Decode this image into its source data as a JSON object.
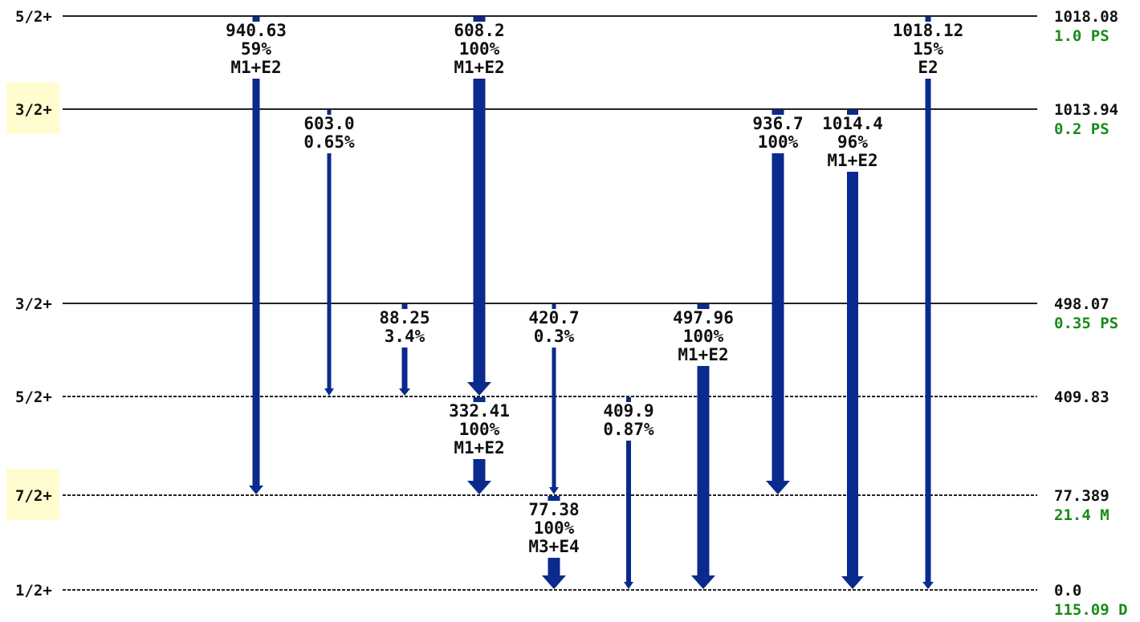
{
  "colors": {
    "arrow": "#0a2a8e",
    "lifetime": "#1b8a1b",
    "line": "#222222",
    "highlight": "#fffccf"
  },
  "levels": [
    {
      "spin": "5/2+",
      "energy": "1018.08",
      "lifetime": "1.0 PS",
      "dashed": false,
      "highlight": false
    },
    {
      "spin": "3/2+",
      "energy": "1013.94",
      "lifetime": "0.2 PS",
      "dashed": false,
      "highlight": true
    },
    {
      "spin": "3/2+",
      "energy": "498.07",
      "lifetime": "0.35 PS",
      "dashed": false,
      "highlight": false
    },
    {
      "spin": "5/2+",
      "energy": "409.83",
      "lifetime": "",
      "dashed": true,
      "highlight": false
    },
    {
      "spin": "7/2+",
      "energy": "77.389",
      "lifetime": "21.4 M",
      "dashed": true,
      "highlight": true
    },
    {
      "spin": "1/2+",
      "energy": "0.0",
      "lifetime": "115.09 D",
      "dashed": true,
      "highlight": false
    }
  ],
  "transitions": [
    {
      "from": 0,
      "to": 4,
      "energy": "940.63",
      "intensity": "59%",
      "mult": "M1+E2",
      "thick": 9
    },
    {
      "from": 0,
      "to": 3,
      "energy": "608.2",
      "intensity": "100%",
      "mult": "M1+E2",
      "thick": 15
    },
    {
      "from": 0,
      "to": 5,
      "energy": "1018.12",
      "intensity": "15%",
      "mult": "E2",
      "thick": 7
    },
    {
      "from": 1,
      "to": 3,
      "energy": "603.0",
      "intensity": "0.65%",
      "mult": "",
      "thick": 5
    },
    {
      "from": 1,
      "to": 4,
      "energy": "936.7",
      "intensity": "100%",
      "mult": "",
      "thick": 15
    },
    {
      "from": 1,
      "to": 5,
      "energy": "1014.4",
      "intensity": "96%",
      "mult": "M1+E2",
      "thick": 14
    },
    {
      "from": 2,
      "to": 3,
      "energy": "88.25",
      "intensity": "3.4%",
      "mult": "",
      "thick": 7
    },
    {
      "from": 2,
      "to": 4,
      "energy": "420.7",
      "intensity": "0.3%",
      "mult": "",
      "thick": 5
    },
    {
      "from": 2,
      "to": 5,
      "energy": "497.96",
      "intensity": "100%",
      "mult": "M1+E2",
      "thick": 15
    },
    {
      "from": 3,
      "to": 4,
      "energy": "332.41",
      "intensity": "100%",
      "mult": "M1+E2",
      "thick": 15
    },
    {
      "from": 3,
      "to": 5,
      "energy": "409.9",
      "intensity": "0.87%",
      "mult": "",
      "thick": 6
    },
    {
      "from": 4,
      "to": 5,
      "energy": "77.38",
      "intensity": "100%",
      "mult": "M3+E4",
      "thick": 15
    }
  ]
}
